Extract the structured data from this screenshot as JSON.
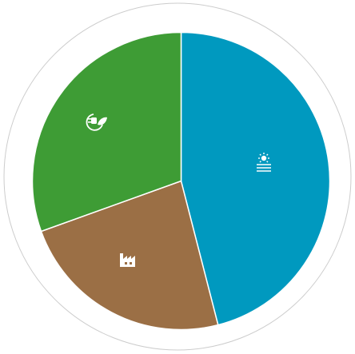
{
  "chart_data": {
    "type": "pie",
    "values": [
      46,
      23.5,
      30.5
    ],
    "colors": [
      "#0099bf",
      "#9b6f45",
      "#3e9c35"
    ],
    "start_angle": 0,
    "direction": "clockwise"
  }
}
